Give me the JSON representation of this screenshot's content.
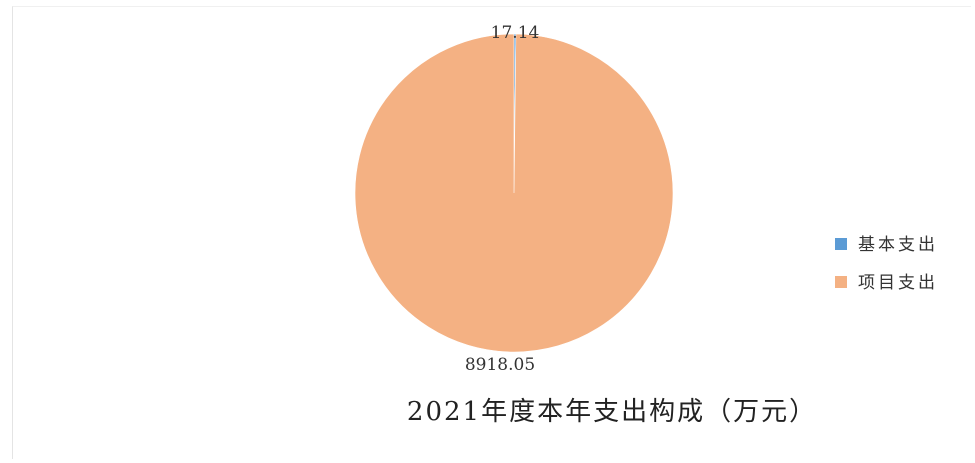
{
  "chart_data": {
    "type": "pie",
    "title": "2021年度本年支出构成（万元）",
    "series": [
      {
        "name": "基本支出",
        "value": 17.14,
        "label": "17.14",
        "color": "#5b9bd5"
      },
      {
        "name": "项目支出",
        "value": 8918.05,
        "label": "8918.05",
        "color": "#f4b183"
      }
    ],
    "legend_position": "right"
  }
}
